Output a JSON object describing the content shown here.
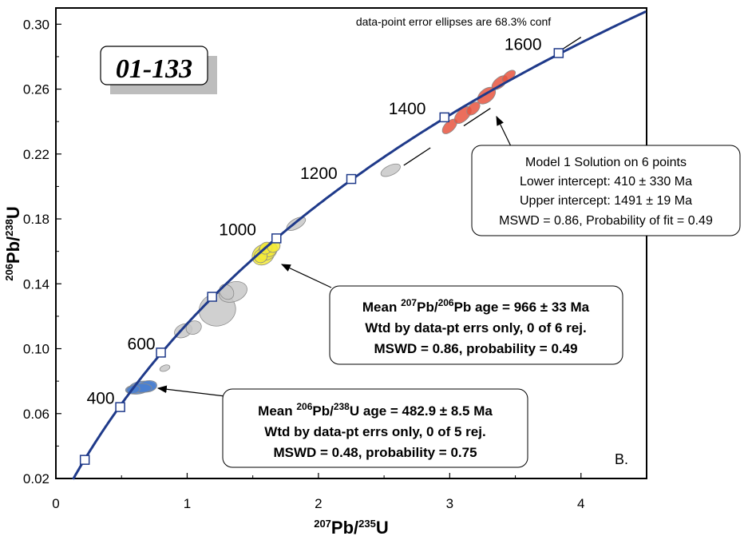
{
  "chart_data": {
    "type": "scatter",
    "subtype": "U-Pb concordia diagram",
    "sample_label": "01-133",
    "note": "data-point error ellipses are 68.3% conf",
    "panel_label": "B.",
    "xlabel_mass_a": "207",
    "xlabel_elem_a": "Pb",
    "xlabel_sep": "/",
    "xlabel_mass_b": "235",
    "xlabel_elem_b": "U",
    "ylabel_mass_a": "206",
    "ylabel_elem_a": "Pb",
    "ylabel_sep": "/",
    "ylabel_mass_b": "238",
    "ylabel_elem_b": "U",
    "xlim": [
      0,
      4.5
    ],
    "ylim": [
      0.02,
      0.31
    ],
    "x_ticks": [
      "0",
      "1",
      "2",
      "3",
      "4"
    ],
    "y_ticks": [
      "0.02",
      "0.06",
      "0.10",
      "0.14",
      "0.18",
      "0.22",
      "0.26",
      "0.30"
    ],
    "concordia": {
      "color": "#1f3a8a",
      "age_markers": [
        {
          "age": 200,
          "x": 0.22,
          "y": 0.0315,
          "label": ""
        },
        {
          "age": 400,
          "x": 0.49,
          "y": 0.064,
          "label": "400"
        },
        {
          "age": 600,
          "x": 0.8,
          "y": 0.0976,
          "label": "600"
        },
        {
          "age": 800,
          "x": 1.19,
          "y": 0.132,
          "label": ""
        },
        {
          "age": 1000,
          "x": 1.68,
          "y": 0.168,
          "label": "1000"
        },
        {
          "age": 1200,
          "x": 2.25,
          "y": 0.2046,
          "label": "1200"
        },
        {
          "age": 1400,
          "x": 2.96,
          "y": 0.2426,
          "label": "1400"
        },
        {
          "age": 1600,
          "x": 3.83,
          "y": 0.2822,
          "label": "1600"
        }
      ]
    },
    "discordia": {
      "x": [
        2.65,
        3.56
      ],
      "y": [
        0.213,
        0.2615
      ],
      "dashed": true
    },
    "ellipses": [
      {
        "x": 0.62,
        "y": 0.075,
        "rx": 0.09,
        "ry": 0.003,
        "angle": -5,
        "group": "blue"
      },
      {
        "x": 0.66,
        "y": 0.0765,
        "rx": 0.1,
        "ry": 0.0035,
        "angle": -5,
        "group": "blue"
      },
      {
        "x": 0.7,
        "y": 0.0768,
        "rx": 0.07,
        "ry": 0.0035,
        "angle": -10,
        "group": "blue"
      },
      {
        "x": 0.65,
        "y": 0.0758,
        "rx": 0.08,
        "ry": 0.0028,
        "angle": 0,
        "group": "blue"
      },
      {
        "x": 0.59,
        "y": 0.0748,
        "rx": 0.05,
        "ry": 0.0025,
        "angle": -10,
        "group": "blue"
      },
      {
        "x": 0.83,
        "y": 0.088,
        "rx": 0.04,
        "ry": 0.0018,
        "angle": -20,
        "group": "grey"
      },
      {
        "x": 0.97,
        "y": 0.111,
        "rx": 0.07,
        "ry": 0.004,
        "angle": -25,
        "group": "grey"
      },
      {
        "x": 1.05,
        "y": 0.113,
        "rx": 0.06,
        "ry": 0.004,
        "angle": -25,
        "group": "grey"
      },
      {
        "x": 1.23,
        "y": 0.124,
        "rx": 0.14,
        "ry": 0.01,
        "angle": -12,
        "group": "grey"
      },
      {
        "x": 1.35,
        "y": 0.135,
        "rx": 0.11,
        "ry": 0.006,
        "angle": -20,
        "group": "grey"
      },
      {
        "x": 1.3,
        "y": 0.135,
        "rx": 0.05,
        "ry": 0.005,
        "angle": -40,
        "group": "grey"
      },
      {
        "x": 1.58,
        "y": 0.158,
        "rx": 0.09,
        "ry": 0.006,
        "angle": -35,
        "group": "yellow"
      },
      {
        "x": 1.61,
        "y": 0.16,
        "rx": 0.08,
        "ry": 0.005,
        "angle": -35,
        "group": "yellow"
      },
      {
        "x": 1.63,
        "y": 0.161,
        "rx": 0.06,
        "ry": 0.004,
        "angle": -35,
        "group": "yellow"
      },
      {
        "x": 1.56,
        "y": 0.157,
        "rx": 0.05,
        "ry": 0.004,
        "angle": -35,
        "group": "yellow"
      },
      {
        "x": 1.6,
        "y": 0.162,
        "rx": 0.05,
        "ry": 0.0035,
        "angle": -35,
        "group": "yellow"
      },
      {
        "x": 1.66,
        "y": 0.163,
        "rx": 0.05,
        "ry": 0.0035,
        "angle": -35,
        "group": "yellow"
      },
      {
        "x": 1.83,
        "y": 0.177,
        "rx": 0.08,
        "ry": 0.003,
        "angle": -30,
        "group": "grey"
      },
      {
        "x": 2.55,
        "y": 0.21,
        "rx": 0.08,
        "ry": 0.003,
        "angle": -25,
        "group": "grey"
      },
      {
        "x": 3.0,
        "y": 0.237,
        "rx": 0.07,
        "ry": 0.003,
        "angle": -45,
        "group": "red"
      },
      {
        "x": 3.1,
        "y": 0.244,
        "rx": 0.08,
        "ry": 0.0035,
        "angle": -45,
        "group": "red"
      },
      {
        "x": 3.18,
        "y": 0.248,
        "rx": 0.06,
        "ry": 0.003,
        "angle": -45,
        "group": "red"
      },
      {
        "x": 3.28,
        "y": 0.256,
        "rx": 0.08,
        "ry": 0.004,
        "angle": -40,
        "group": "red"
      },
      {
        "x": 3.38,
        "y": 0.264,
        "rx": 0.07,
        "ry": 0.003,
        "angle": -40,
        "group": "red"
      },
      {
        "x": 3.45,
        "y": 0.268,
        "rx": 0.06,
        "ry": 0.0025,
        "angle": -40,
        "group": "red"
      }
    ],
    "annotations": [
      {
        "id": "model",
        "lines": [
          "Model 1 Solution on 6 points",
          "Lower intercept: 410 ± 330 Ma",
          "Upper intercept: 1491 ± 19  Ma",
          "MSWD = 0.86, Probability of fit = 0.49"
        ]
      },
      {
        "id": "mean207",
        "l1_a": "Mean ",
        "l1_sup1": "207",
        "l1_b": "Pb/",
        "l1_sup2": "206",
        "l1_c": "Pb age = 966 ± 33 Ma",
        "l2": "Wtd by data-pt errs only, 0 of 6 rej.",
        "l3": "MSWD = 0.86, probability = 0.49"
      },
      {
        "id": "mean206",
        "l1_a": "Mean ",
        "l1_sup1": "206",
        "l1_b": "Pb/",
        "l1_sup2": "238",
        "l1_c": "U age = 482.9 ± 8.5 Ma",
        "l2": "Wtd by data-pt errs only, 0 of 5 rej.",
        "l3": "MSWD = 0.48, probability = 0.75"
      }
    ],
    "colors": {
      "concordia": "#1f3a8a",
      "grey": "#c8c8c8",
      "blue": "#4a7fd0",
      "yellow": "#f3ea3a",
      "red": "#e8553f",
      "ellipse_stroke": "#8a8a8a"
    }
  }
}
